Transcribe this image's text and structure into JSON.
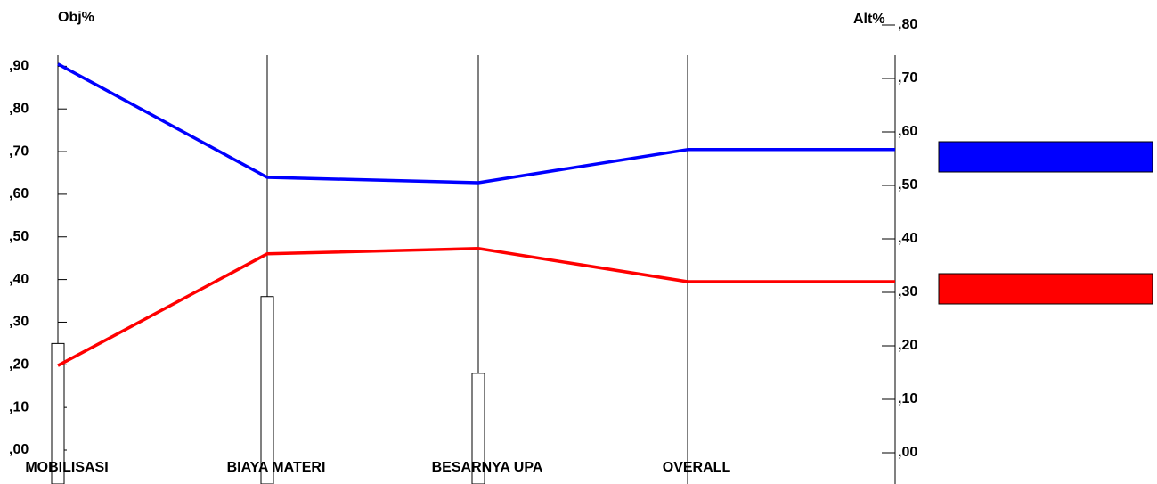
{
  "chart_data": {
    "type": "performance",
    "y_label": "Obj%",
    "y2_label": "Alt%",
    "categories": [
      "MOBILISASI",
      "BIAYA MATERI",
      "BESARNYA UPA",
      "OVERALL"
    ],
    "values": [
      0.25,
      0.36,
      0.18,
      null
    ],
    "bar_color": "#ffffff",
    "ylim": [
      0,
      0.93
    ],
    "yticks": [
      {
        "value": 0,
        "label": ",00"
      },
      {
        "value": 0.1,
        "label": ",10"
      },
      {
        "value": 0.2,
        "label": ",20"
      },
      {
        "value": 0.3,
        "label": ",30"
      },
      {
        "value": 0.4,
        "label": ",40"
      },
      {
        "value": 0.5,
        "label": ",50"
      },
      {
        "value": 0.6,
        "label": ",60"
      },
      {
        "value": 0.7,
        "label": ",70"
      },
      {
        "value": 0.8,
        "label": ",80"
      },
      {
        "value": 0.9,
        "label": ",90"
      }
    ],
    "y2lim": [
      0,
      0.8
    ],
    "y2ticks": [
      {
        "value": 0,
        "label": ",00"
      },
      {
        "value": 0.1,
        "label": ",10"
      },
      {
        "value": 0.2,
        "label": ",20"
      },
      {
        "value": 0.3,
        "label": ",30"
      },
      {
        "value": 0.4,
        "label": ",40"
      },
      {
        "value": 0.5,
        "label": ",50"
      },
      {
        "value": 0.6,
        "label": ",60"
      },
      {
        "value": 0.7,
        "label": ",70"
      },
      {
        "value": 0.8,
        "label": ",80"
      }
    ],
    "series": [
      {
        "color": "#0000ff",
        "axis": "y2",
        "values": [
          0.727,
          0.515,
          0.505,
          0.567
        ]
      },
      {
        "color": "#ff0000",
        "axis": "y2",
        "values": [
          0.163,
          0.372,
          0.382,
          0.32
        ]
      }
    ]
  }
}
